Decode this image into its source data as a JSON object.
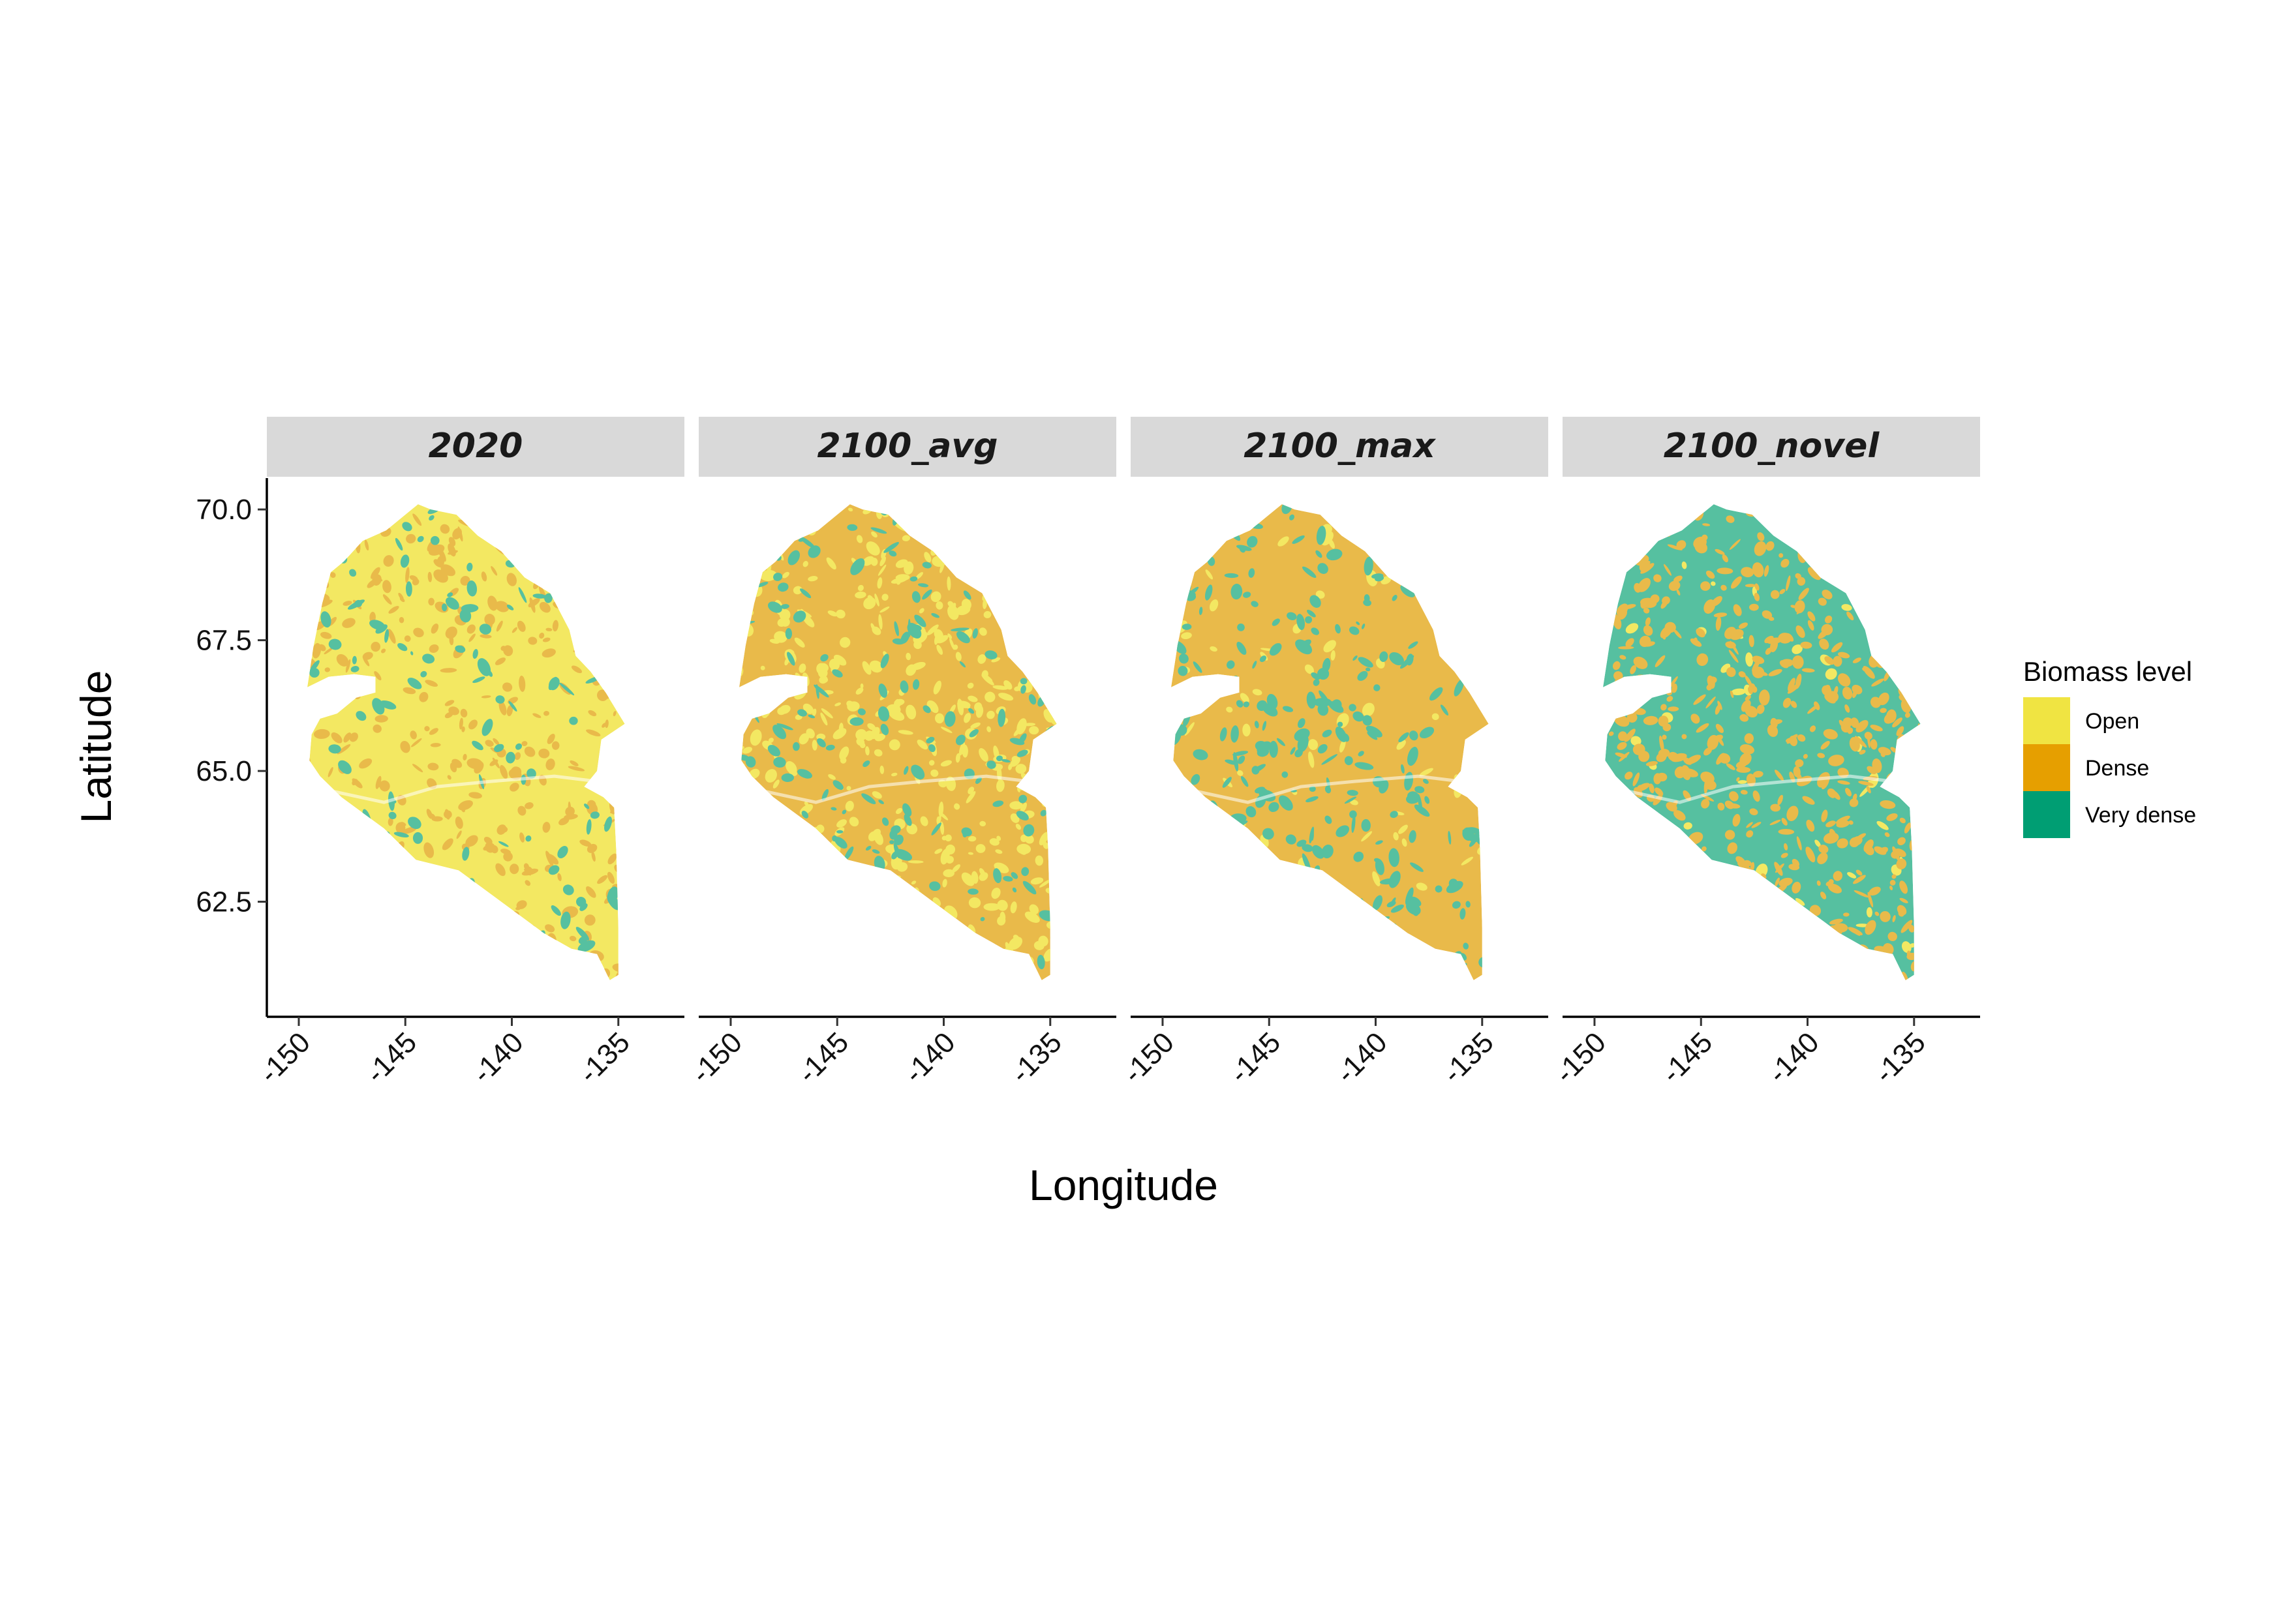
{
  "chart_data": {
    "type": "heatmap",
    "title": "",
    "xlabel": "Longitude",
    "ylabel": "Latitude",
    "xlim": [
      -151.5,
      -131.9
    ],
    "ylim": [
      60.3,
      70.6
    ],
    "x_ticks": [
      -150,
      -145,
      -140,
      -135
    ],
    "x_tick_labels": [
      "-150",
      "-145",
      "-140",
      "-135"
    ],
    "y_ticks": [
      62.5,
      65.0,
      67.5,
      70.0
    ],
    "y_tick_labels": [
      "62.5",
      "65.0",
      "67.5",
      "70.0"
    ],
    "legend": {
      "title": "Biomass level",
      "position": "right",
      "items": [
        {
          "label": "Open",
          "color": "#F0E442"
        },
        {
          "label": "Dense",
          "color": "#E69F00"
        },
        {
          "label": "Very dense",
          "color": "#009E73"
        }
      ]
    },
    "panels": [
      {
        "label": "2020",
        "dominant_class": "Open",
        "open": 0.6,
        "dense": 0.3,
        "very_dense": 0.1
      },
      {
        "label": "2100_avg",
        "dominant_class": "Dense",
        "open": 0.38,
        "dense": 0.47,
        "very_dense": 0.15
      },
      {
        "label": "2100_max",
        "dominant_class": "Dense",
        "open": 0.06,
        "dense": 0.7,
        "very_dense": 0.24
      },
      {
        "label": "2100_novel",
        "dominant_class": "Very dense",
        "open": 0.03,
        "dense": 0.47,
        "very_dense": 0.5
      }
    ],
    "region_outline_lonlat": [
      [
        -149.6,
        66.6
      ],
      [
        -149.3,
        67.4
      ],
      [
        -148.9,
        68.2
      ],
      [
        -148.5,
        68.8
      ],
      [
        -147.9,
        69.0
      ],
      [
        -147.0,
        69.4
      ],
      [
        -145.9,
        69.6
      ],
      [
        -145.0,
        69.9
      ],
      [
        -144.4,
        70.1
      ],
      [
        -143.8,
        70.0
      ],
      [
        -142.6,
        69.9
      ],
      [
        -141.6,
        69.5
      ],
      [
        -140.5,
        69.2
      ],
      [
        -139.4,
        68.7
      ],
      [
        -138.2,
        68.4
      ],
      [
        -137.3,
        67.7
      ],
      [
        -137.0,
        67.2
      ],
      [
        -136.3,
        66.9
      ],
      [
        -135.6,
        66.5
      ],
      [
        -134.7,
        65.9
      ],
      [
        -135.8,
        65.6
      ],
      [
        -136.0,
        65.0
      ],
      [
        -136.6,
        64.7
      ],
      [
        -135.7,
        64.5
      ],
      [
        -135.2,
        64.3
      ],
      [
        -135.1,
        63.5
      ],
      [
        -135.0,
        62.0
      ],
      [
        -135.0,
        61.1
      ],
      [
        -135.4,
        61.0
      ],
      [
        -136.0,
        61.5
      ],
      [
        -137.2,
        61.6
      ],
      [
        -138.5,
        61.9
      ],
      [
        -140.5,
        62.5
      ],
      [
        -142.5,
        63.1
      ],
      [
        -144.5,
        63.3
      ],
      [
        -146.0,
        63.9
      ],
      [
        -147.0,
        64.2
      ],
      [
        -148.0,
        64.5
      ],
      [
        -149.0,
        64.9
      ],
      [
        -149.5,
        65.2
      ],
      [
        -149.4,
        65.7
      ],
      [
        -149.0,
        66.0
      ],
      [
        -148.2,
        66.1
      ],
      [
        -147.3,
        66.4
      ],
      [
        -146.4,
        66.5
      ],
      [
        -146.4,
        66.8
      ],
      [
        -147.4,
        66.85
      ],
      [
        -148.6,
        66.8
      ],
      [
        -149.6,
        66.6
      ]
    ]
  }
}
